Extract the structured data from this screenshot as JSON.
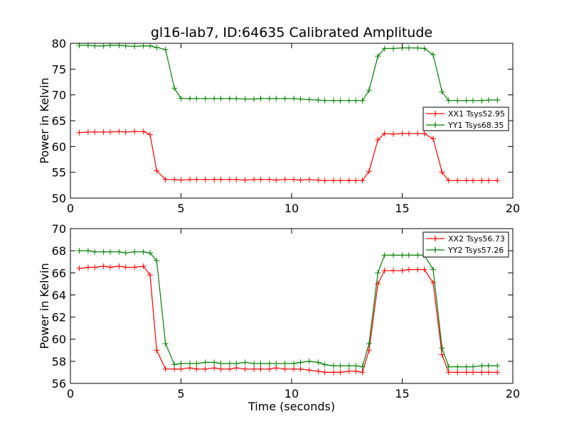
{
  "chart_data": [
    {
      "type": "line",
      "title": "gl16-lab7, ID:64635 Calibrated Amplitude",
      "xlabel": "",
      "ylabel": "Power in Kelvin",
      "xlim": [
        0,
        20
      ],
      "ylim": [
        50,
        80
      ],
      "xticks": [
        "0",
        "5",
        "10",
        "15",
        "20"
      ],
      "yticks": [
        "50",
        "55",
        "60",
        "65",
        "70",
        "75",
        "80"
      ],
      "grid": false,
      "legend_position": "center-right",
      "x": [
        0.4,
        0.8,
        1.1,
        1.5,
        1.8,
        2.2,
        2.5,
        2.9,
        3.3,
        3.6,
        3.9,
        4.3,
        4.7,
        5.0,
        5.4,
        5.7,
        6.1,
        6.5,
        6.8,
        7.2,
        7.5,
        7.9,
        8.3,
        8.6,
        9.0,
        9.3,
        9.7,
        10.1,
        10.4,
        10.8,
        11.2,
        11.5,
        11.9,
        12.2,
        12.6,
        12.9,
        13.2,
        13.5,
        13.9,
        14.2,
        14.6,
        15.0,
        15.3,
        15.7,
        16.0,
        16.4,
        16.8,
        17.1,
        17.5,
        17.9,
        18.2,
        18.6,
        18.9,
        19.3
      ],
      "series": [
        {
          "name": "XX1 Tsys52.95",
          "color": "#ff0000",
          "values": [
            62.7,
            62.8,
            62.8,
            62.8,
            62.8,
            62.9,
            62.8,
            62.9,
            62.9,
            62.3,
            55.3,
            53.6,
            53.6,
            53.5,
            53.6,
            53.6,
            53.6,
            53.6,
            53.6,
            53.6,
            53.6,
            53.5,
            53.6,
            53.6,
            53.6,
            53.5,
            53.6,
            53.6,
            53.5,
            53.6,
            53.5,
            53.4,
            53.4,
            53.4,
            53.4,
            53.4,
            53.4,
            55.2,
            61.3,
            62.5,
            62.4,
            62.5,
            62.5,
            62.5,
            62.5,
            61.5,
            55.0,
            53.4,
            53.4,
            53.4,
            53.4,
            53.4,
            53.4,
            53.4
          ]
        },
        {
          "name": "YY1 Tsys68.35",
          "color": "#008000",
          "values": [
            79.6,
            79.6,
            79.5,
            79.5,
            79.6,
            79.6,
            79.5,
            79.4,
            79.5,
            79.5,
            79.2,
            78.8,
            71.3,
            69.3,
            69.3,
            69.3,
            69.3,
            69.3,
            69.3,
            69.3,
            69.3,
            69.2,
            69.2,
            69.3,
            69.3,
            69.3,
            69.3,
            69.3,
            69.2,
            69.1,
            69.0,
            68.9,
            68.9,
            68.9,
            68.9,
            68.9,
            68.9,
            70.9,
            77.5,
            79.0,
            79.0,
            79.1,
            79.1,
            79.1,
            79.0,
            77.8,
            70.6,
            68.9,
            68.9,
            68.9,
            68.9,
            68.9,
            69.0,
            69.0
          ]
        }
      ]
    },
    {
      "type": "line",
      "title": "",
      "xlabel": "Time (seconds)",
      "ylabel": "Power in Kelvin",
      "xlim": [
        0,
        20
      ],
      "ylim": [
        56,
        70
      ],
      "xticks": [
        "0",
        "5",
        "10",
        "15",
        "20"
      ],
      "yticks": [
        "56",
        "58",
        "60",
        "62",
        "64",
        "66",
        "68",
        "70"
      ],
      "grid": false,
      "legend_position": "top-right",
      "x": [
        0.4,
        0.8,
        1.1,
        1.5,
        1.8,
        2.2,
        2.5,
        2.9,
        3.3,
        3.6,
        3.9,
        4.3,
        4.7,
        5.0,
        5.4,
        5.7,
        6.1,
        6.5,
        6.8,
        7.2,
        7.5,
        7.9,
        8.3,
        8.6,
        9.0,
        9.3,
        9.7,
        10.1,
        10.4,
        10.8,
        11.2,
        11.5,
        11.9,
        12.2,
        12.6,
        12.9,
        13.2,
        13.5,
        13.9,
        14.2,
        14.6,
        15.0,
        15.3,
        15.7,
        16.0,
        16.4,
        16.8,
        17.1,
        17.5,
        17.9,
        18.2,
        18.6,
        18.9,
        19.3
      ],
      "series": [
        {
          "name": "XX2 Tsys56.73",
          "color": "#ff0000",
          "values": [
            66.4,
            66.5,
            66.5,
            66.6,
            66.5,
            66.6,
            66.5,
            66.5,
            66.6,
            65.8,
            59.0,
            57.3,
            57.3,
            57.3,
            57.4,
            57.3,
            57.3,
            57.4,
            57.3,
            57.3,
            57.4,
            57.3,
            57.3,
            57.3,
            57.3,
            57.4,
            57.3,
            57.3,
            57.3,
            57.2,
            57.1,
            57.0,
            57.0,
            57.0,
            57.1,
            57.1,
            57.0,
            59.0,
            65.0,
            66.2,
            66.2,
            66.2,
            66.3,
            66.3,
            66.3,
            65.1,
            58.6,
            57.0,
            57.0,
            57.0,
            57.0,
            57.0,
            57.0,
            57.0
          ]
        },
        {
          "name": "YY2 Tsys57.26",
          "color": "#008000",
          "values": [
            68.0,
            68.0,
            67.9,
            67.9,
            67.9,
            67.9,
            67.8,
            67.9,
            67.9,
            67.8,
            67.1,
            59.6,
            57.7,
            57.8,
            57.8,
            57.8,
            57.9,
            57.9,
            57.8,
            57.8,
            57.8,
            57.9,
            57.8,
            57.8,
            57.8,
            57.8,
            57.8,
            57.8,
            57.9,
            58.0,
            57.9,
            57.7,
            57.6,
            57.6,
            57.6,
            57.6,
            57.5,
            59.6,
            66.0,
            67.6,
            67.6,
            67.6,
            67.6,
            67.6,
            67.6,
            66.3,
            59.2,
            57.5,
            57.5,
            57.5,
            57.5,
            57.6,
            57.6,
            57.6
          ]
        }
      ]
    }
  ]
}
